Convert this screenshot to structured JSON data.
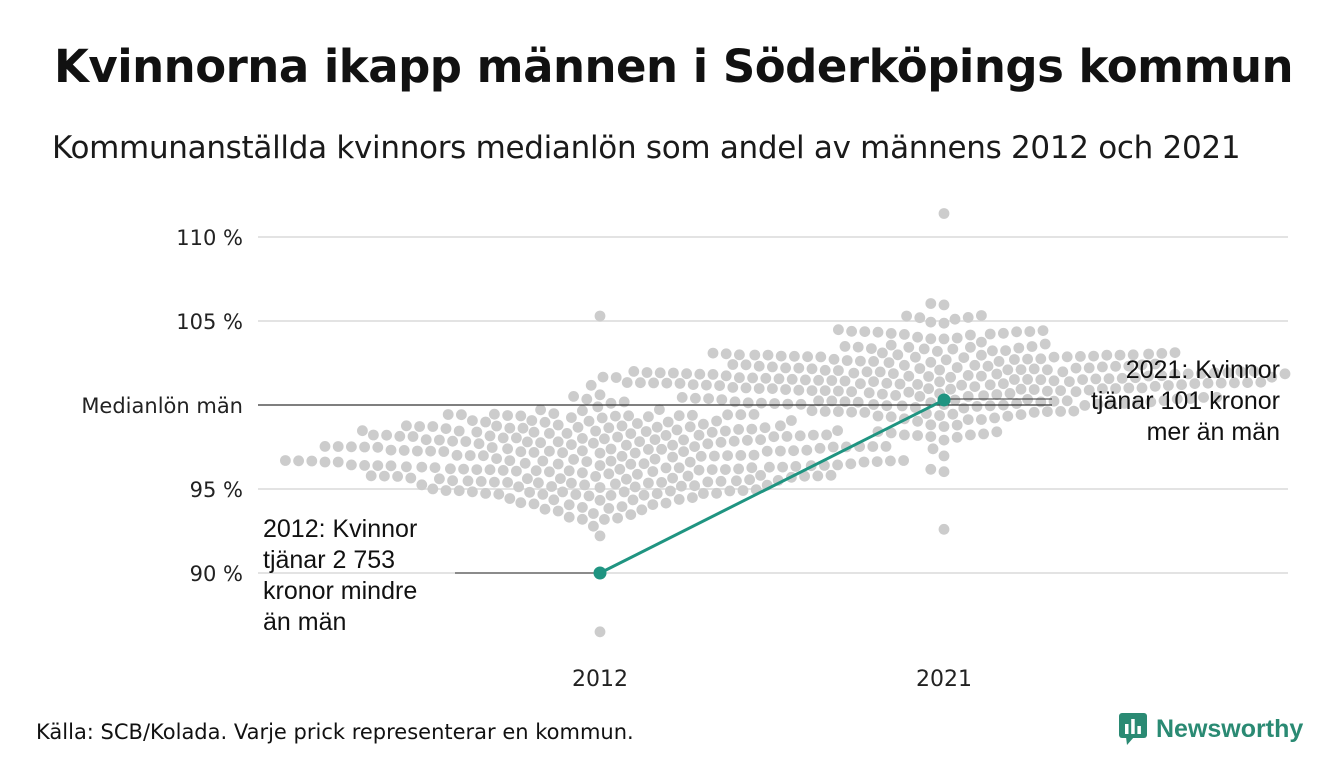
{
  "header": {
    "title": "Kvinnorna ikapp männen i Söderköpings kommun",
    "subtitle": "Kommunanställda kvinnors medianlön som andel av männens 2012 och 2021"
  },
  "footer": {
    "source": "Källa: SCB/Kolada. Varje prick representerar en kommun.",
    "brand": "Newsworthy"
  },
  "colors": {
    "dots": "#cccccc",
    "highlight": "#1f9481",
    "grid": "#e3e3e3",
    "reference": "#333333",
    "brand": "#2a8a73"
  },
  "chart_data": {
    "type": "scatter",
    "title": "Kvinnorna ikapp männen i Söderköpings kommun",
    "subtitle": "Kommunanställda kvinnors medianlön som andel av männens 2012 och 2021",
    "categories": [
      "2012",
      "2021"
    ],
    "ylim": [
      86.5,
      111.5
    ],
    "y_ticks": [
      {
        "value": 90,
        "label": "90 %"
      },
      {
        "value": 95,
        "label": "95 %"
      },
      {
        "value": 100,
        "label": "Medianlön män"
      },
      {
        "value": 105,
        "label": "105 %"
      },
      {
        "value": 110,
        "label": "110 %"
      }
    ],
    "reference_line": {
      "value": 100,
      "label": "Medianlön män"
    },
    "distribution": {
      "description_source": "Varje prick representerar en kommun.",
      "series": [
        {
          "category": "2012",
          "dot_count": 290,
          "min": 86.5,
          "max": 105.3,
          "median": 96.8,
          "spread": 1.75
        },
        {
          "category": "2021",
          "dot_count": 290,
          "min": 92.6,
          "max": 111.4,
          "median": 101.6,
          "spread": 1.6
        }
      ]
    },
    "highlight": {
      "name": "Söderköping",
      "points": [
        {
          "x": "2012",
          "y": 90.0
        },
        {
          "x": "2021",
          "y": 100.3
        }
      ]
    },
    "annotations": [
      {
        "category": "2012",
        "lines": [
          "2012: Kvinnor",
          "tjänar 2 753",
          "kronor mindre",
          "än män"
        ]
      },
      {
        "category": "2021",
        "lines": [
          "2021: Kvinnor",
          "tjänar 101 kronor",
          "mer än män"
        ]
      }
    ],
    "grid": true,
    "legend": "none"
  }
}
